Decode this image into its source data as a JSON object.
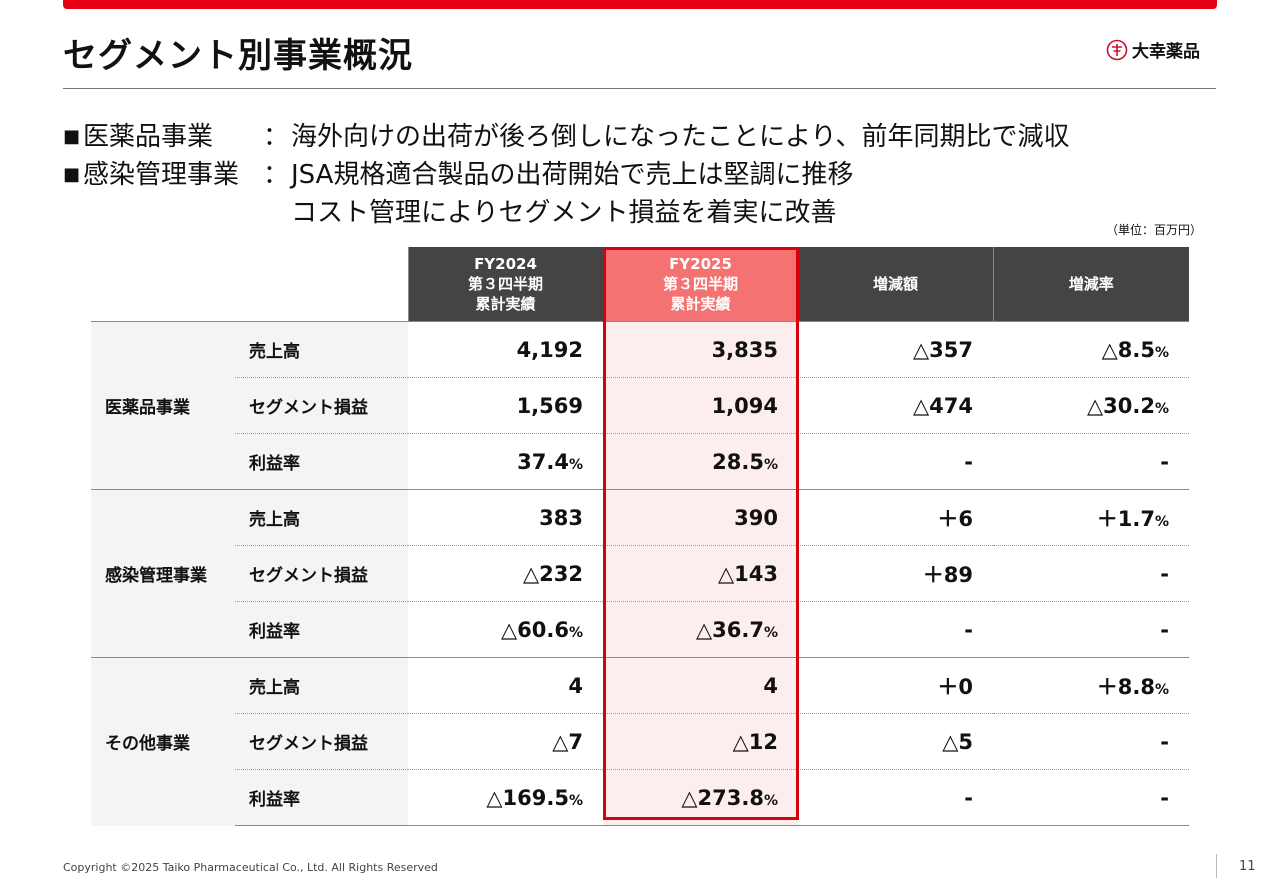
{
  "title": "セグメント別事業概況",
  "logo_text": "大幸薬品",
  "bullets": [
    {
      "label": "医薬品事業",
      "colon": "：",
      "lines": [
        "海外向けの出荷が後ろ倒しになったことにより、前年同期比で減収"
      ]
    },
    {
      "label": "感染管理事業",
      "colon": "：",
      "lines": [
        "JSA規格適合製品の出荷開始で売上は堅調に推移",
        "コスト管理によりセグメント損益を着実に改善"
      ]
    }
  ],
  "unit": "（単位：百万円）",
  "table": {
    "headers": [
      {
        "lines": [
          "FY2024",
          "第３四半期",
          "累計実績"
        ]
      },
      {
        "lines": [
          "FY2025",
          "第３四半期",
          "累計実績"
        ]
      },
      {
        "lines": [
          "増減額"
        ]
      },
      {
        "lines": [
          "増減率"
        ]
      }
    ],
    "segments": [
      {
        "name": "医薬品事業",
        "rows": [
          {
            "metric": "売上高",
            "fy2024": "4,192",
            "fy2025": "3,835",
            "diff": "△357",
            "rate": "△8.5",
            "rate_unit": "%"
          },
          {
            "metric": "セグメント損益",
            "fy2024": "1,569",
            "fy2025": "1,094",
            "diff": "△474",
            "rate": "△30.2",
            "rate_unit": "%"
          },
          {
            "metric": "利益率",
            "fy2024": "37.4",
            "fy2024_unit": "%",
            "fy2025": "28.5",
            "fy2025_unit": "%",
            "diff": "-",
            "rate": "-"
          }
        ]
      },
      {
        "name": "感染管理事業",
        "rows": [
          {
            "metric": "売上高",
            "fy2024": "383",
            "fy2025": "390",
            "diff": "＋6",
            "rate": "＋1.7",
            "rate_unit": "%"
          },
          {
            "metric": "セグメント損益",
            "fy2024": "△232",
            "fy2025": "△143",
            "diff": "＋89",
            "rate": "-"
          },
          {
            "metric": "利益率",
            "fy2024": "△60.6",
            "fy2024_unit": "%",
            "fy2025": "△36.7",
            "fy2025_unit": "%",
            "diff": "-",
            "rate": "-"
          }
        ]
      },
      {
        "name": "その他事業",
        "rows": [
          {
            "metric": "売上高",
            "fy2024": "4",
            "fy2025": "4",
            "diff": "＋0",
            "rate": "＋8.8",
            "rate_unit": "%"
          },
          {
            "metric": "セグメント損益",
            "fy2024": "△7",
            "fy2025": "△12",
            "diff": "△5",
            "rate": "-"
          },
          {
            "metric": "利益率",
            "fy2024": "△169.5",
            "fy2024_unit": "%",
            "fy2025": "△273.8",
            "fy2025_unit": "%",
            "diff": "-",
            "rate": "-"
          }
        ]
      }
    ]
  },
  "footer": {
    "copyright": "Copyright ©2025  Taiko Pharmaceutical Co., Ltd. All Rights Reserved",
    "page": "11"
  }
}
